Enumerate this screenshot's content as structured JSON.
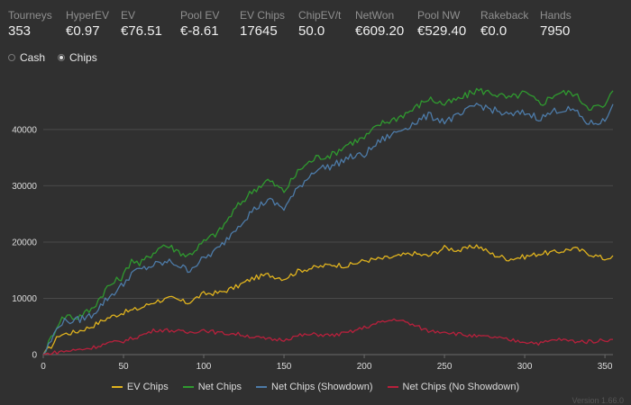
{
  "stats": [
    {
      "label": "Tourneys",
      "value": "353"
    },
    {
      "label": "HyperEV",
      "value": "€0.97"
    },
    {
      "label": "EV",
      "value": "€76.51"
    },
    {
      "label": "Pool EV",
      "value": "€-8.61"
    },
    {
      "label": "EV Chips",
      "value": "17645"
    },
    {
      "label": "ChipEV/t",
      "value": "50.0"
    },
    {
      "label": "NetWon",
      "value": "€609.20"
    },
    {
      "label": "Pool NW",
      "value": "€529.40"
    },
    {
      "label": "Rakeback",
      "value": "€0.0"
    },
    {
      "label": "Hands",
      "value": "7950"
    }
  ],
  "mode_toggle": {
    "options": [
      "Cash",
      "Chips"
    ],
    "selected": "Chips"
  },
  "version": "Version 1.66.0",
  "chart_data": {
    "type": "line",
    "xlim": [
      0,
      355
    ],
    "ylim": [
      0,
      47500
    ],
    "x_ticks": [
      0,
      50,
      100,
      150,
      200,
      250,
      300,
      350
    ],
    "y_ticks": [
      0,
      10000,
      20000,
      30000,
      40000
    ],
    "grid": "horizontal",
    "legend_position": "bottom",
    "series": [
      {
        "name": "EV Chips",
        "color": "#e0b31e",
        "points": [
          [
            0,
            0
          ],
          [
            5,
            1500
          ],
          [
            10,
            3500
          ],
          [
            20,
            4000
          ],
          [
            30,
            5000
          ],
          [
            40,
            6500
          ],
          [
            50,
            7500
          ],
          [
            60,
            8200
          ],
          [
            70,
            9500
          ],
          [
            80,
            10000
          ],
          [
            90,
            9200
          ],
          [
            100,
            10800
          ],
          [
            110,
            11000
          ],
          [
            120,
            12000
          ],
          [
            130,
            13500
          ],
          [
            140,
            14200
          ],
          [
            150,
            13500
          ],
          [
            160,
            15000
          ],
          [
            170,
            15500
          ],
          [
            180,
            16000
          ],
          [
            190,
            15800
          ],
          [
            200,
            16700
          ],
          [
            210,
            17000
          ],
          [
            220,
            17400
          ],
          [
            230,
            18000
          ],
          [
            240,
            17500
          ],
          [
            250,
            19000
          ],
          [
            260,
            18500
          ],
          [
            270,
            19400
          ],
          [
            280,
            17800
          ],
          [
            290,
            17000
          ],
          [
            300,
            17400
          ],
          [
            310,
            18000
          ],
          [
            320,
            18200
          ],
          [
            330,
            18900
          ],
          [
            340,
            18000
          ],
          [
            350,
            17000
          ],
          [
            355,
            17600
          ]
        ]
      },
      {
        "name": "Net Chips",
        "color": "#2f9a2f",
        "points": [
          [
            0,
            0
          ],
          [
            5,
            3000
          ],
          [
            10,
            6000
          ],
          [
            15,
            7000
          ],
          [
            20,
            6500
          ],
          [
            30,
            8000
          ],
          [
            40,
            12000
          ],
          [
            50,
            14000
          ],
          [
            55,
            17000
          ],
          [
            60,
            16000
          ],
          [
            70,
            18500
          ],
          [
            75,
            19500
          ],
          [
            80,
            19000
          ],
          [
            90,
            17500
          ],
          [
            100,
            20000
          ],
          [
            110,
            22000
          ],
          [
            120,
            26000
          ],
          [
            130,
            29000
          ],
          [
            140,
            31000
          ],
          [
            150,
            29000
          ],
          [
            160,
            33000
          ],
          [
            170,
            35000
          ],
          [
            180,
            35500
          ],
          [
            190,
            37500
          ],
          [
            200,
            38500
          ],
          [
            210,
            41000
          ],
          [
            220,
            42000
          ],
          [
            230,
            43500
          ],
          [
            240,
            45500
          ],
          [
            250,
            44500
          ],
          [
            260,
            45500
          ],
          [
            270,
            47000
          ],
          [
            280,
            46500
          ],
          [
            290,
            45500
          ],
          [
            300,
            46500
          ],
          [
            310,
            44500
          ],
          [
            320,
            46500
          ],
          [
            330,
            46500
          ],
          [
            340,
            44000
          ],
          [
            350,
            44000
          ],
          [
            355,
            46900
          ]
        ]
      },
      {
        "name": "Net Chips (Showdown)",
        "color": "#4d7ba8",
        "points": [
          [
            0,
            0
          ],
          [
            5,
            2500
          ],
          [
            10,
            5500
          ],
          [
            15,
            6000
          ],
          [
            20,
            6000
          ],
          [
            30,
            7000
          ],
          [
            40,
            10000
          ],
          [
            50,
            12500
          ],
          [
            55,
            14500
          ],
          [
            60,
            15000
          ],
          [
            70,
            16000
          ],
          [
            80,
            16500
          ],
          [
            90,
            15000
          ],
          [
            100,
            17000
          ],
          [
            110,
            19000
          ],
          [
            120,
            22500
          ],
          [
            130,
            25500
          ],
          [
            140,
            27500
          ],
          [
            150,
            26000
          ],
          [
            160,
            30000
          ],
          [
            170,
            33000
          ],
          [
            180,
            33500
          ],
          [
            190,
            35000
          ],
          [
            200,
            35500
          ],
          [
            210,
            38000
          ],
          [
            220,
            39500
          ],
          [
            230,
            41000
          ],
          [
            240,
            42500
          ],
          [
            250,
            41500
          ],
          [
            260,
            42500
          ],
          [
            270,
            44500
          ],
          [
            280,
            43500
          ],
          [
            290,
            42500
          ],
          [
            300,
            43000
          ],
          [
            310,
            42000
          ],
          [
            320,
            43500
          ],
          [
            330,
            43500
          ],
          [
            340,
            41000
          ],
          [
            350,
            41500
          ],
          [
            355,
            44500
          ]
        ]
      },
      {
        "name": "Net Chips (No Showdown)",
        "color": "#b8203c",
        "points": [
          [
            0,
            0
          ],
          [
            10,
            500
          ],
          [
            20,
            800
          ],
          [
            30,
            1200
          ],
          [
            40,
            2000
          ],
          [
            50,
            2400
          ],
          [
            60,
            3300
          ],
          [
            70,
            4400
          ],
          [
            80,
            4300
          ],
          [
            90,
            3900
          ],
          [
            100,
            4400
          ],
          [
            110,
            3800
          ],
          [
            120,
            3700
          ],
          [
            130,
            3200
          ],
          [
            140,
            2700
          ],
          [
            150,
            2700
          ],
          [
            160,
            3400
          ],
          [
            170,
            3600
          ],
          [
            180,
            3400
          ],
          [
            190,
            3900
          ],
          [
            200,
            4800
          ],
          [
            210,
            5700
          ],
          [
            220,
            6300
          ],
          [
            230,
            5300
          ],
          [
            240,
            4200
          ],
          [
            250,
            4100
          ],
          [
            260,
            3600
          ],
          [
            270,
            3200
          ],
          [
            280,
            3100
          ],
          [
            290,
            2600
          ],
          [
            300,
            2300
          ],
          [
            310,
            2000
          ],
          [
            320,
            2700
          ],
          [
            330,
            2400
          ],
          [
            340,
            2300
          ],
          [
            350,
            2600
          ],
          [
            355,
            2700
          ]
        ]
      }
    ]
  }
}
